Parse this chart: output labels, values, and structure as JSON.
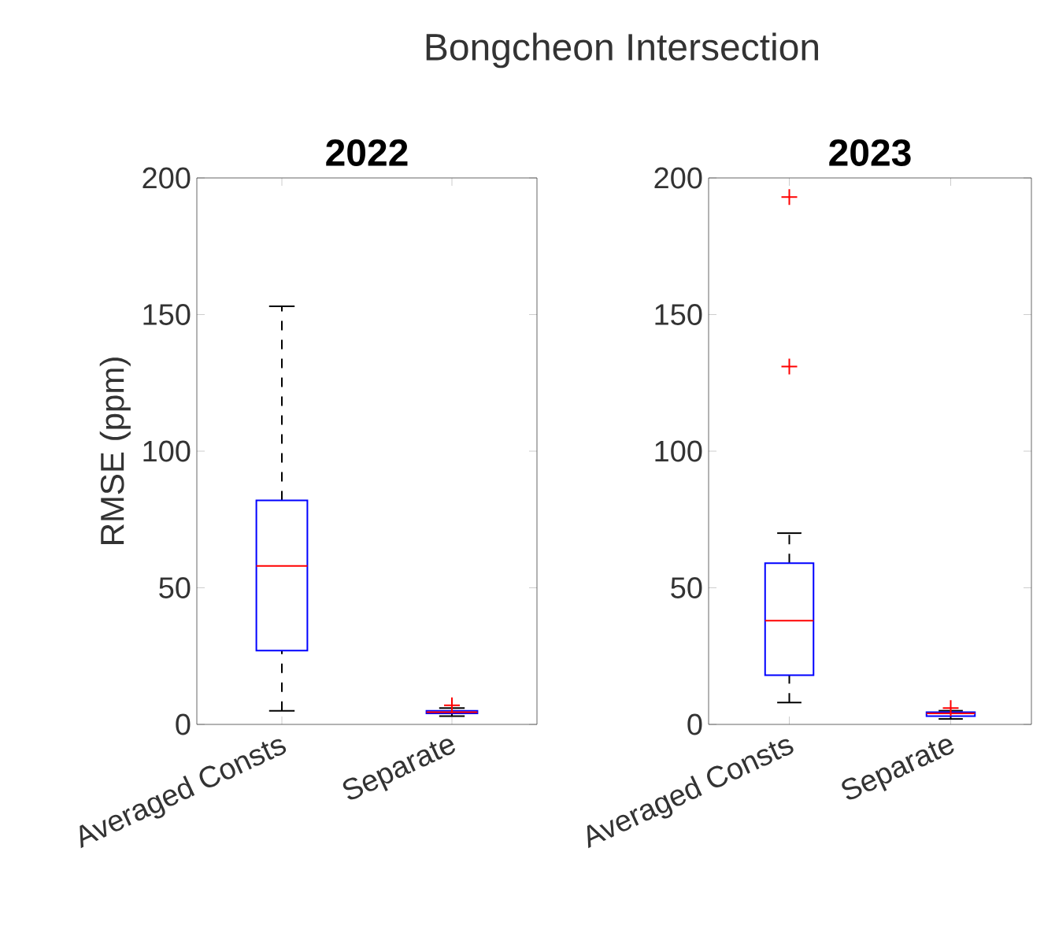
{
  "chart_data": [
    {
      "type": "box",
      "title": "2022",
      "ylabel": "RMSE (ppm)",
      "annotations": [
        "Bongcheon Intersection"
      ],
      "categories": [
        "Averaged Consts",
        "Separate"
      ],
      "ylim": [
        0,
        200
      ],
      "yticks": [
        0,
        50,
        100,
        150,
        200
      ],
      "series": [
        {
          "color": "#0000ff",
          "boxes": [
            {
              "low": 5,
              "q1": 27,
              "median": 58,
              "q3": 82,
              "high": 153
            },
            {
              "low": 3,
              "q1": 4,
              "median": 4.5,
              "q3": 5,
              "high": 6,
              "outliers": [
                7
              ]
            }
          ]
        }
      ]
    },
    {
      "type": "box",
      "title": "2023",
      "categories": [
        "Averaged Consts",
        "Separate"
      ],
      "ylim": [
        0,
        200
      ],
      "yticks": [
        0,
        50,
        100,
        150,
        200
      ],
      "series": [
        {
          "color": "#0000ff",
          "boxes": [
            {
              "low": 8,
              "q1": 18,
              "median": 38,
              "q3": 59,
              "high": 70,
              "outliers": [
                131,
                193
              ]
            },
            {
              "low": 2,
              "q1": 3,
              "median": 4,
              "q3": 4.5,
              "high": 5,
              "outliers": [
                6
              ]
            }
          ]
        }
      ]
    }
  ]
}
